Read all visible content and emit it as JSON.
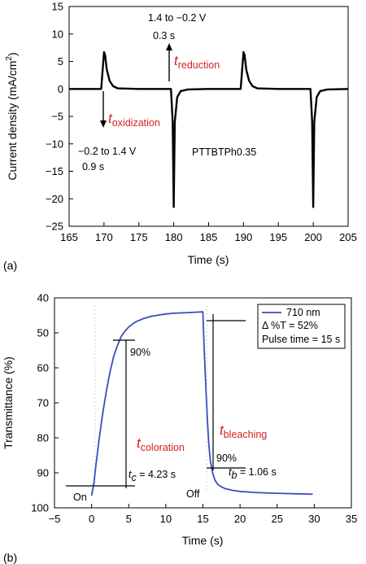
{
  "chart_data": [
    {
      "type": "line",
      "panel_label": "(a)",
      "xlabel": "Time (s)",
      "ylabel": "Current density (mA/cm²)",
      "ylabel_main": "Current density (mA/cm",
      "ylabel_sup": "2",
      "ylabel_end": ")",
      "xlim": [
        165,
        205
      ],
      "ylim": [
        -25,
        15
      ],
      "x_ticks": [
        165,
        170,
        175,
        180,
        185,
        190,
        195,
        200,
        205
      ],
      "y_ticks": [
        15,
        10,
        5,
        0,
        -5,
        -10,
        -15,
        -20,
        -25
      ],
      "series": [
        {
          "color": "#000000",
          "x": [
            165,
            169.6,
            170.0,
            170.15,
            170.4,
            170.8,
            171.3,
            172.0,
            175,
            179.6,
            179.85,
            180.0,
            180.15,
            180.5,
            181.0,
            182,
            185,
            189.6,
            190.0,
            190.15,
            190.4,
            190.8,
            191.3,
            192.0,
            195,
            199.6,
            199.85,
            200.0,
            200.15,
            200.5,
            201.0,
            202,
            205
          ],
          "y": [
            0,
            0,
            6.7,
            6.2,
            3.5,
            1.5,
            0.5,
            0.1,
            0,
            0,
            -6,
            -21.5,
            -6,
            -1.5,
            -0.4,
            -0.1,
            0,
            0,
            6.7,
            6.2,
            3.5,
            1.5,
            0.5,
            0.1,
            0,
            0,
            -6,
            -21.5,
            -6,
            -1.5,
            -0.4,
            -0.1,
            0
          ]
        }
      ],
      "annotations": {
        "reduction_step": "1.4 to −0.2 V",
        "reduction_time": "0.3 s",
        "t_reduction_t": "t",
        "t_reduction_sub": "reduction",
        "t_oxidization_t": "t",
        "t_oxidization_sub": "oxidization",
        "oxidation_step": "−0.2 to 1.4 V",
        "oxidation_time": "0.9 s",
        "sample": "PTTBTPh0.35"
      }
    },
    {
      "type": "line",
      "panel_label": "(b)",
      "xlabel": "Time (s)",
      "ylabel": "Transmittance (%)",
      "xlim": [
        -5,
        35
      ],
      "ylim": [
        100,
        40
      ],
      "y_inverted": true,
      "x_ticks": [
        -5,
        0,
        5,
        10,
        15,
        20,
        25,
        30,
        35
      ],
      "y_ticks": [
        40,
        50,
        60,
        70,
        80,
        90,
        100
      ],
      "series": [
        {
          "name": "710 nm",
          "color": "#3b4cc0",
          "x": [
            0.0,
            0.3,
            0.6,
            1.0,
            1.5,
            2.0,
            2.5,
            3.0,
            3.5,
            4.0,
            4.5,
            5.0,
            5.5,
            6.0,
            7.0,
            8.0,
            9.0,
            10.0,
            11.0,
            12.0,
            13.0,
            14.0,
            15.0,
            15.05,
            15.2,
            15.4,
            15.6,
            15.8,
            16.0,
            16.3,
            16.6,
            17.0,
            17.5,
            18.0,
            19.0,
            20.0,
            22.0,
            24.0,
            26.0,
            28.0,
            29.8
          ],
          "y": [
            96.5,
            93.0,
            87.5,
            80.5,
            73.0,
            66.5,
            61.0,
            56.5,
            53.5,
            51.0,
            49.5,
            48.3,
            47.5,
            46.8,
            45.9,
            45.3,
            44.9,
            44.6,
            44.4,
            44.3,
            44.2,
            44.1,
            44.0,
            48.0,
            56.0,
            66.0,
            75.0,
            82.0,
            86.5,
            90.0,
            92.0,
            93.3,
            94.0,
            94.5,
            95.0,
            95.3,
            95.6,
            95.8,
            95.9,
            96.0,
            96.1
          ]
        }
      ],
      "legend": {
        "position": "top-right",
        "series_label": "710 nm",
        "delta_line": "Δ %T = 52%",
        "pulse_line": "Pulse time = 15 s"
      },
      "annotations": {
        "on_label": "On",
        "off_label": "Off",
        "pct_90_coloration": "90%",
        "pct_90_bleaching": "90%",
        "t_coloration_t": "t",
        "t_coloration_sub": "coloration",
        "t_bleaching_t": "t",
        "t_bleaching_sub": "bleaching",
        "tc_t": "t",
        "tc_sub": "c",
        "tc_value": " = 4.23 s",
        "tb_t": "t",
        "tb_sub": "b",
        "tb_value": " = 1.06 s"
      },
      "markers": {
        "coloration_start": {
          "x": 0,
          "y": 96.5
        },
        "coloration_90": {
          "x": 4.23,
          "y": 50
        },
        "bleaching_start": {
          "x": 15,
          "y": 44
        },
        "bleaching_90": {
          "x": 16.06,
          "y": 91
        }
      }
    }
  ]
}
